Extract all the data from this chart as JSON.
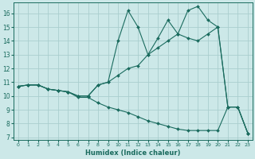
{
  "xlabel": "Humidex (Indice chaleur)",
  "bg_color": "#cce8e8",
  "line_color": "#1a6b5e",
  "grid_color": "#aacece",
  "xlim_min": -0.5,
  "xlim_max": 23.5,
  "ylim_min": 6.8,
  "ylim_max": 16.8,
  "xticks": [
    0,
    1,
    2,
    3,
    4,
    5,
    6,
    7,
    8,
    9,
    10,
    11,
    12,
    13,
    14,
    15,
    16,
    17,
    18,
    19,
    20,
    21,
    22,
    23
  ],
  "yticks": [
    7,
    8,
    9,
    10,
    11,
    12,
    13,
    14,
    15,
    16
  ],
  "line1_x": [
    0,
    1,
    2,
    3,
    4,
    5,
    6,
    7,
    8,
    9,
    10,
    11,
    12,
    13,
    14,
    15,
    16,
    17,
    18,
    19,
    20,
    21,
    22,
    23
  ],
  "line1_y": [
    10.7,
    10.8,
    10.8,
    10.5,
    10.4,
    10.3,
    10.0,
    10.0,
    10.8,
    11.0,
    14.0,
    16.2,
    15.0,
    13.0,
    14.2,
    15.5,
    14.5,
    16.2,
    16.5,
    15.5,
    15.0,
    9.2,
    9.2,
    7.3
  ],
  "line2_x": [
    0,
    1,
    2,
    3,
    4,
    5,
    6,
    7,
    8,
    9,
    10,
    11,
    12,
    13,
    14,
    15,
    16,
    17,
    18,
    19,
    20,
    21,
    22,
    23
  ],
  "line2_y": [
    10.7,
    10.8,
    10.8,
    10.5,
    10.4,
    10.3,
    10.0,
    10.0,
    10.8,
    11.0,
    11.5,
    12.0,
    12.2,
    13.0,
    13.5,
    14.0,
    14.5,
    14.2,
    14.0,
    14.5,
    15.0,
    9.2,
    9.2,
    7.3
  ],
  "line3_x": [
    0,
    1,
    2,
    3,
    4,
    5,
    6,
    7,
    8,
    9,
    10,
    11,
    12,
    13,
    14,
    15,
    16,
    17,
    18,
    19,
    20,
    21,
    22,
    23
  ],
  "line3_y": [
    10.7,
    10.8,
    10.8,
    10.5,
    10.4,
    10.3,
    9.9,
    9.9,
    9.5,
    9.2,
    9.0,
    8.8,
    8.5,
    8.2,
    8.0,
    7.8,
    7.6,
    7.5,
    7.5,
    7.5,
    7.5,
    9.2,
    9.2,
    7.3
  ]
}
